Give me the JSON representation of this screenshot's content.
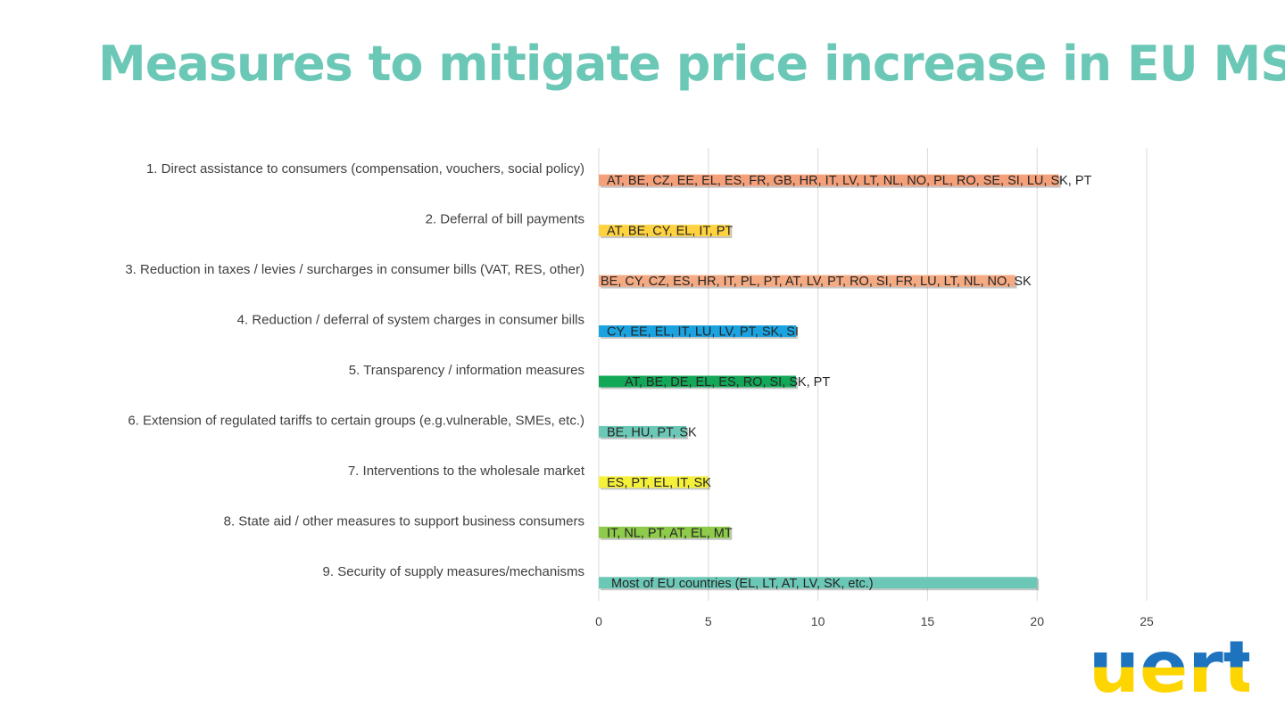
{
  "title": "Measures to mitigate price increase in EU MS",
  "colors": {
    "title": "#6cc8b6",
    "grid": "#d9d9d9"
  },
  "chart_data": {
    "type": "bar",
    "orientation": "horizontal",
    "xlim": [
      0,
      25
    ],
    "xticks": [
      0,
      5,
      10,
      15,
      20,
      25
    ],
    "grid": true,
    "legend": "none",
    "categories": [
      "1. Direct assistance to consumers (compensation, vouchers, social policy)",
      "2. Deferral of bill payments",
      "3. Reduction in taxes / levies / surcharges in consumer bills (VAT, RES, other)",
      "4. Reduction / deferral of system charges in consumer bills",
      "5. Transparency / information measures",
      "6. Extension of regulated tariffs to certain groups (e.g.vulnerable, SMEs, etc.)",
      "7. Interventions to the wholesale market",
      "8. State aid / other measures to support business consumers",
      "9. Security of supply measures/mechanisms"
    ],
    "values": [
      21,
      6,
      19,
      9,
      9,
      4,
      5,
      6,
      20
    ],
    "data_labels": [
      "AT, BE, CZ, EE, EL, ES, FR, GB, HR, IT, LV, LT, NL, NO, PL, RO, SE, SI, LU, SK, PT",
      "AT, BE, CY, EL, IT, PT",
      "BE, CY, CZ, ES, HR, IT, PL, PT, AT, LV, PT, RO, SI, FR, LU, LT, NL, NO, SK",
      "CY, EE, EL, IT, LU, LV, PT, SK, SI",
      "AT, BE, DE, EL, ES, RO, SI, SK, PT",
      "BE, HU, PT, SK",
      "ES, PT, EL, IT, SK",
      "IT, NL, PT, AT, EL, MT",
      "Most of EU countries (EL, LT, AT, LV, SK, etc.)"
    ],
    "bar_colors": [
      "#f4a07a",
      "#ffd23f",
      "#f4aa82",
      "#1aa3e0",
      "#13a858",
      "#6cc8b6",
      "#f5f03a",
      "#8ecb4a",
      "#6cc8b6"
    ]
  },
  "logo": {
    "text": "uert",
    "icon": "uert-logo-icon",
    "colors": {
      "top": "#1e73be",
      "bottom": "#ffd500"
    }
  }
}
